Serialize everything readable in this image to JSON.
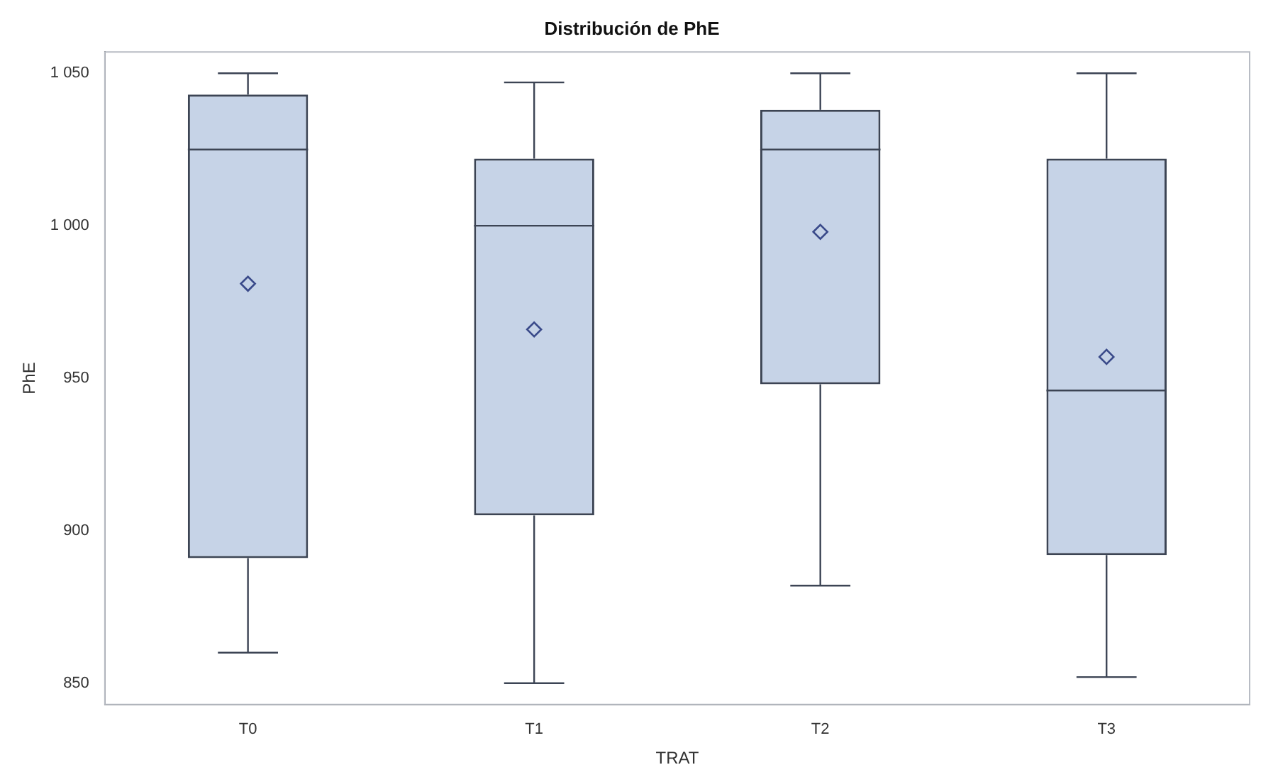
{
  "chart_data": {
    "type": "box",
    "title": "Distribución de PhE",
    "xlabel": "TRAT",
    "ylabel": "PhE",
    "categories": [
      "T0",
      "T1",
      "T2",
      "T3"
    ],
    "boxes": [
      {
        "low": 860,
        "q1": 891,
        "median": 1025,
        "q3": 1043,
        "high": 1050,
        "mean": 981
      },
      {
        "low": 850,
        "q1": 905,
        "median": 1000,
        "q3": 1022,
        "high": 1047,
        "mean": 966
      },
      {
        "low": 882,
        "q1": 948,
        "median": 1025,
        "q3": 1038,
        "high": 1050,
        "mean": 998
      },
      {
        "low": 852,
        "q1": 892,
        "median": 946,
        "q3": 1022,
        "high": 1050,
        "mean": 957
      }
    ],
    "color": "#c6d3e7",
    "ylim": [
      843,
      1057
    ],
    "yticks": [
      {
        "value": 850,
        "label": "850"
      },
      {
        "value": 900,
        "label": "900"
      },
      {
        "value": 950,
        "label": "950"
      },
      {
        "value": 1000,
        "label": "1 000"
      },
      {
        "value": 1050,
        "label": "1 050"
      }
    ],
    "grid": false,
    "legend": false,
    "marker": "diamond"
  }
}
